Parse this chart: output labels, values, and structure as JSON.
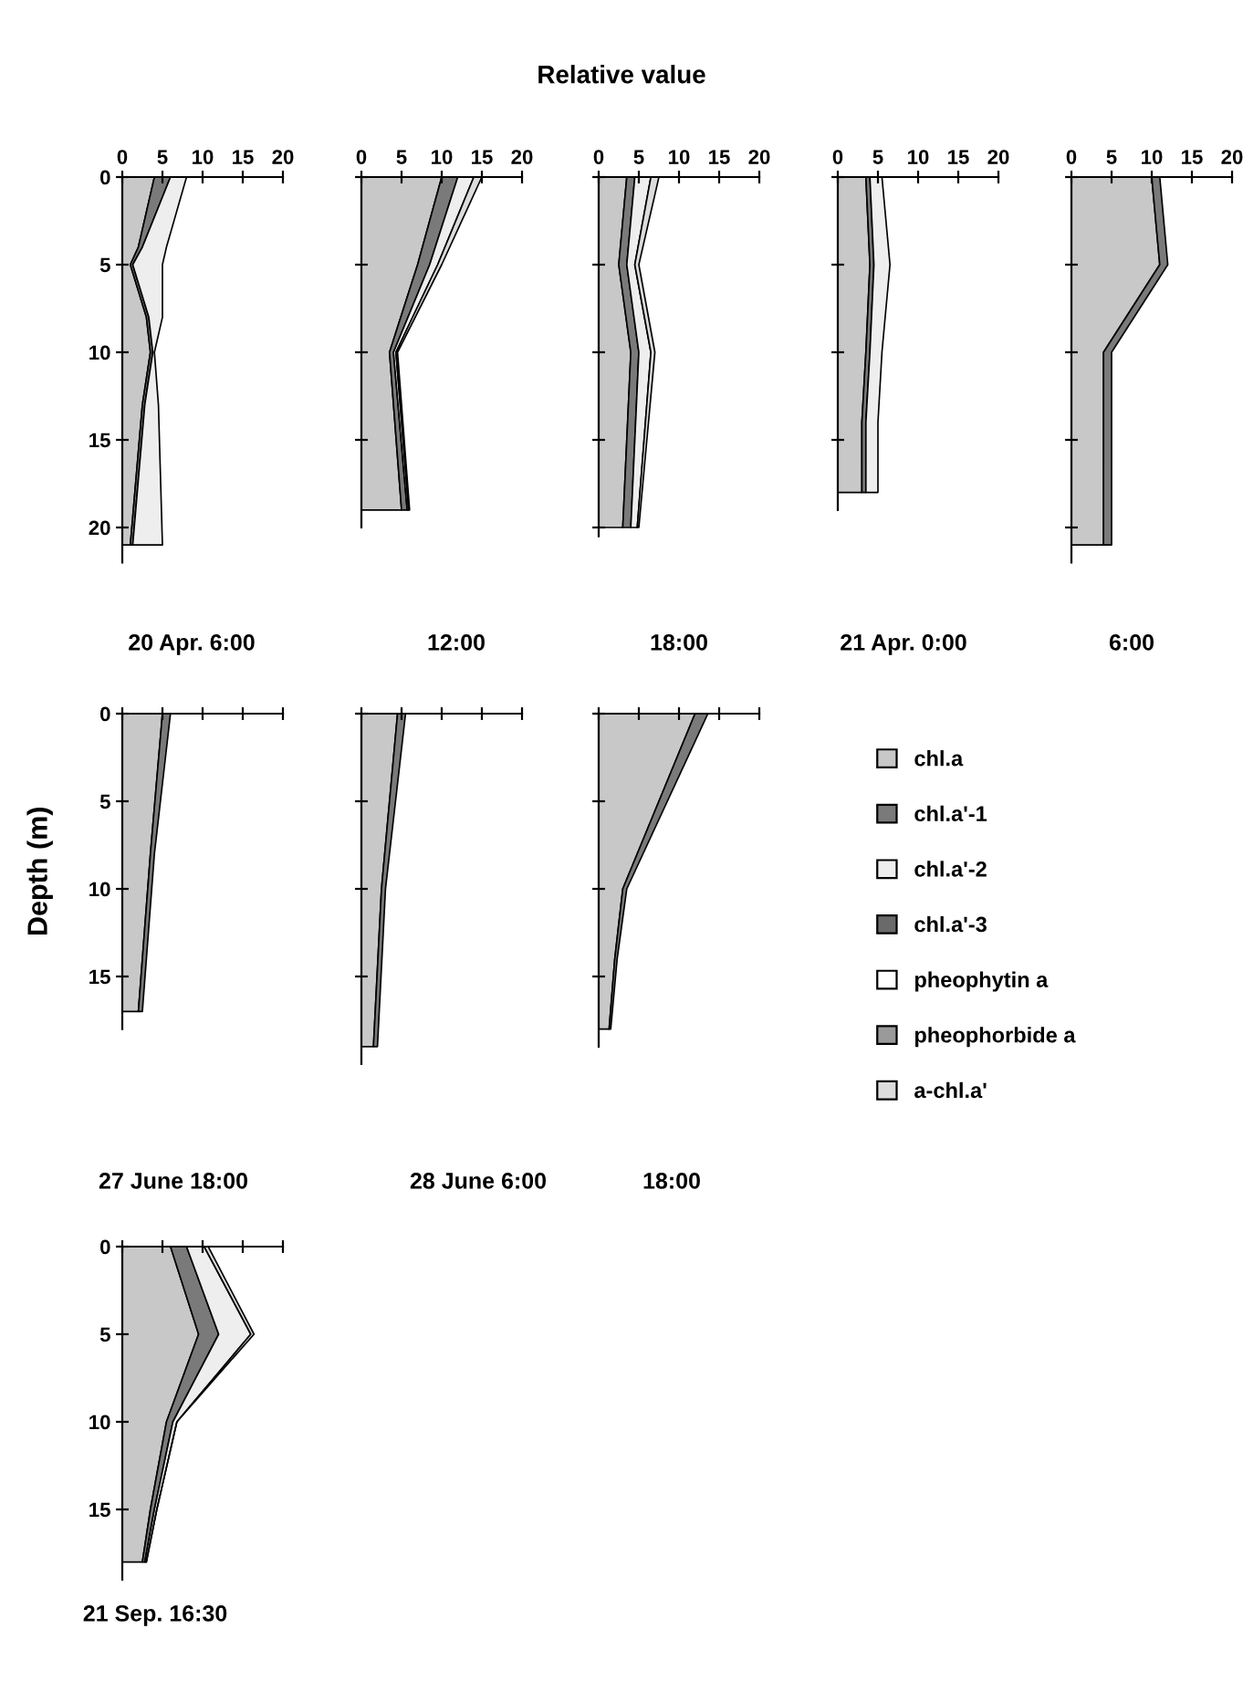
{
  "chart_data": [
    {
      "type": "area",
      "stacked": true,
      "orientation": "horizontal",
      "title": "20 Apr. 6:00",
      "annotations": [
        "Relative value"
      ],
      "x": [
        0,
        4,
        5,
        8,
        10,
        13,
        21
      ],
      "xlim": [
        0,
        20
      ],
      "xticks": [
        0,
        5,
        10,
        15,
        20
      ],
      "ylim": [
        22,
        0
      ],
      "yticks": [
        0,
        5,
        10,
        15,
        20
      ],
      "series": [
        {
          "color": "#c8c8c8",
          "values": [
            4,
            2,
            1,
            3,
            3.5,
            2.5,
            1
          ]
        },
        {
          "color": "#7a7a7a",
          "values": [
            2,
            0.5,
            0.3,
            0.3,
            0.3,
            0.3,
            0.3
          ]
        },
        {
          "color": "#eeeeee",
          "values": [
            2,
            3,
            3.7,
            1.7,
            0.2,
            1.7,
            3.7
          ]
        }
      ]
    },
    {
      "type": "area",
      "stacked": true,
      "orientation": "horizontal",
      "title": "12:00",
      "x": [
        0,
        5,
        10,
        19
      ],
      "xlim": [
        0,
        20
      ],
      "xticks": [
        0,
        5,
        10,
        15,
        20
      ],
      "ylim": [
        20,
        0
      ],
      "yticks": [
        0,
        5,
        10,
        15
      ],
      "tick_labels": "x",
      "series": [
        {
          "color": "#c8c8c8",
          "values": [
            10,
            7,
            3.5,
            5
          ]
        },
        {
          "color": "#7a7a7a",
          "values": [
            2,
            1.5,
            0.5,
            0.7
          ]
        },
        {
          "color": "#eeeeee",
          "values": [
            2,
            1,
            0.3,
            0.2
          ]
        },
        {
          "color": "#dcdcdc",
          "values": [
            1,
            0.5,
            0.2,
            0.1
          ]
        }
      ]
    },
    {
      "type": "area",
      "stacked": true,
      "orientation": "horizontal",
      "title": "18:00",
      "x": [
        0,
        5,
        10,
        20
      ],
      "xlim": [
        0,
        20
      ],
      "xticks": [
        0,
        5,
        10,
        15,
        20
      ],
      "ylim": [
        20.5,
        0
      ],
      "yticks": [
        0,
        5,
        10,
        15,
        20
      ],
      "tick_labels": "x",
      "series": [
        {
          "color": "#c8c8c8",
          "values": [
            3.5,
            2.5,
            4,
            3
          ]
        },
        {
          "color": "#7a7a7a",
          "values": [
            1,
            1,
            1,
            1
          ]
        },
        {
          "color": "#eeeeee",
          "values": [
            2,
            1,
            1.5,
            0.8
          ]
        },
        {
          "color": "#dcdcdc",
          "values": [
            1,
            0.5,
            0.5,
            0.2
          ]
        }
      ]
    },
    {
      "type": "area",
      "stacked": true,
      "orientation": "horizontal",
      "title": "21 Apr. 0:00",
      "x": [
        0,
        5,
        10,
        14,
        18
      ],
      "xlim": [
        0,
        20
      ],
      "xticks": [
        0,
        5,
        10,
        15,
        20
      ],
      "ylim": [
        19,
        0
      ],
      "yticks": [
        0,
        5,
        10,
        15
      ],
      "tick_labels": "x",
      "series": [
        {
          "color": "#c8c8c8",
          "values": [
            3.5,
            4,
            3.5,
            3,
            3
          ]
        },
        {
          "color": "#7a7a7a",
          "values": [
            0.5,
            0.5,
            0.5,
            0.5,
            0.5
          ]
        },
        {
          "color": "#eeeeee",
          "values": [
            1.5,
            2,
            1.5,
            1.5,
            1.5
          ]
        }
      ]
    },
    {
      "type": "area",
      "stacked": true,
      "orientation": "horizontal",
      "title": "6:00",
      "x": [
        0,
        5,
        10,
        21
      ],
      "xlim": [
        0,
        20
      ],
      "xticks": [
        0,
        5,
        10,
        15,
        20
      ],
      "ylim": [
        22,
        0
      ],
      "yticks": [
        0,
        5,
        10,
        15,
        20
      ],
      "tick_labels": "x",
      "series": [
        {
          "color": "#c8c8c8",
          "values": [
            10,
            11,
            4,
            4
          ]
        },
        {
          "color": "#7a7a7a",
          "values": [
            1,
            1,
            1,
            1
          ]
        }
      ]
    },
    {
      "type": "area",
      "stacked": true,
      "orientation": "horizontal",
      "title": "27 June 18:00",
      "ylabel": "Depth (m)",
      "x": [
        0,
        8,
        17
      ],
      "xlim": [
        0,
        20
      ],
      "xticks": [
        {
          "value": 0,
          "label": null
        },
        {
          "value": 5,
          "label": null
        },
        {
          "value": 10,
          "label": null
        },
        {
          "value": 15,
          "label": null
        },
        {
          "value": 20,
          "label": null
        }
      ],
      "ylim": [
        18,
        0
      ],
      "yticks": [
        0,
        5,
        10,
        15
      ],
      "tick_labels": "y",
      "series": [
        {
          "color": "#c8c8c8",
          "values": [
            5,
            3.5,
            2
          ]
        },
        {
          "color": "#7a7a7a",
          "values": [
            1,
            0.5,
            0.5
          ]
        }
      ]
    },
    {
      "type": "area",
      "stacked": true,
      "orientation": "horizontal",
      "title": "28 June 6:00",
      "x": [
        0,
        10,
        19
      ],
      "xlim": [
        0,
        20
      ],
      "xticks": [
        {
          "value": 0,
          "label": null
        },
        {
          "value": 5,
          "label": null
        },
        {
          "value": 10,
          "label": null
        },
        {
          "value": 15,
          "label": null
        },
        {
          "value": 20,
          "label": null
        }
      ],
      "ylim": [
        20,
        0
      ],
      "yticks": [
        0,
        5,
        10,
        15
      ],
      "tick_labels": false,
      "series": [
        {
          "color": "#c8c8c8",
          "values": [
            4.5,
            2.5,
            1.5
          ]
        },
        {
          "color": "#7a7a7a",
          "values": [
            1,
            0.5,
            0.5
          ]
        }
      ]
    },
    {
      "type": "area",
      "stacked": true,
      "orientation": "horizontal",
      "title": "18:00",
      "x": [
        0,
        10,
        14,
        18
      ],
      "xlim": [
        0,
        20
      ],
      "xticks": [
        {
          "value": 0,
          "label": null
        },
        {
          "value": 5,
          "label": null
        },
        {
          "value": 10,
          "label": null
        },
        {
          "value": 15,
          "label": null
        },
        {
          "value": 20,
          "label": null
        }
      ],
      "ylim": [
        19,
        0
      ],
      "yticks": [
        0,
        5,
        10,
        15
      ],
      "tick_labels": false,
      "series": [
        {
          "color": "#c8c8c8",
          "values": [
            12,
            3,
            2,
            1.3
          ]
        },
        {
          "color": "#7a7a7a",
          "values": [
            1.6,
            0.5,
            0.3,
            0.2
          ]
        }
      ]
    },
    {
      "type": "area",
      "stacked": true,
      "orientation": "horizontal",
      "title": "21 Sep. 16:30",
      "x": [
        0,
        5,
        10,
        15,
        18
      ],
      "xlim": [
        0,
        20
      ],
      "xticks": [
        {
          "value": 0,
          "label": null
        },
        {
          "value": 5,
          "label": null
        },
        {
          "value": 10,
          "label": null
        },
        {
          "value": 15,
          "label": null
        },
        {
          "value": 20,
          "label": null
        }
      ],
      "ylim": [
        19,
        0
      ],
      "yticks": [
        0,
        5,
        10,
        15
      ],
      "tick_labels": "y",
      "series": [
        {
          "color": "#c8c8c8",
          "values": [
            6,
            9.5,
            5.5,
            3.5,
            2.5
          ]
        },
        {
          "color": "#7a7a7a",
          "values": [
            2,
            2.5,
            0.8,
            0.5,
            0.3
          ]
        },
        {
          "color": "#eeeeee",
          "values": [
            2.2,
            4,
            0.5,
            0.3,
            0.2
          ]
        },
        {
          "color": "#dcdcdc",
          "values": [
            0.5,
            0.4,
            0,
            0,
            0
          ]
        }
      ]
    },
    {
      "type": "other",
      "legend": "right",
      "series": [
        {
          "name": "chl.a",
          "color": "#c8c8c8"
        },
        {
          "name": "chl.a'-1",
          "color": "#7a7a7a"
        },
        {
          "name": "chl.a'-2",
          "color": "#eeeeee"
        },
        {
          "name": "chl.a'-3",
          "color": "#6a6a6a"
        },
        {
          "name": "pheophytin a",
          "color": "#ffffff"
        },
        {
          "name": "pheophorbide a",
          "color": "#9a9a9a"
        },
        {
          "name": "a-chl.a'",
          "color": "#dcdcdc"
        }
      ]
    }
  ]
}
